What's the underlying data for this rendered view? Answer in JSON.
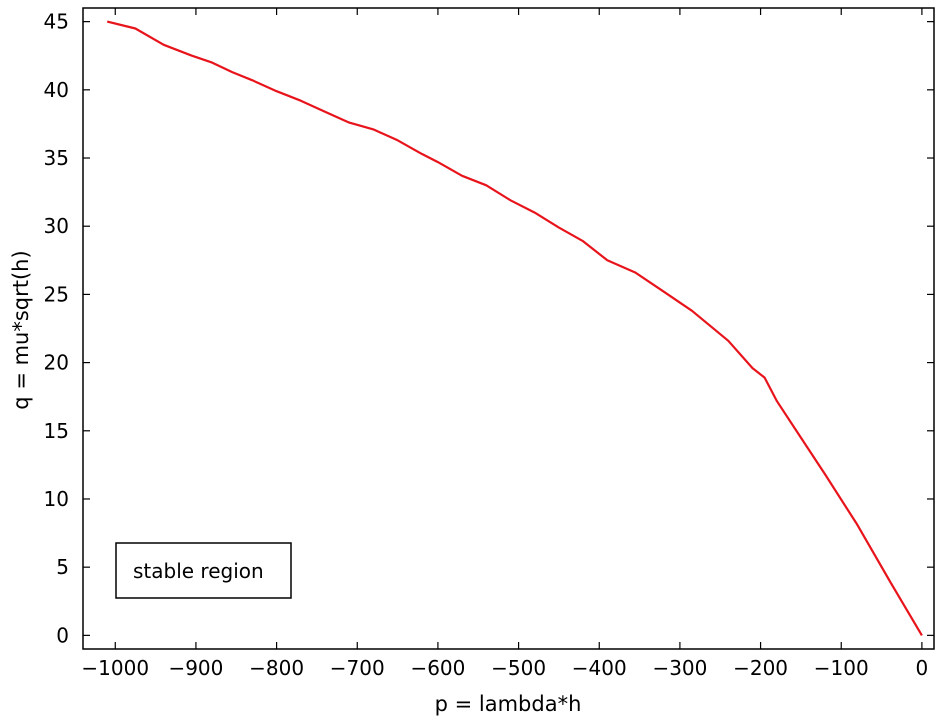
{
  "chart_data": {
    "type": "line",
    "title": "",
    "xlabel": "p = lambda*h",
    "ylabel": "q = mu*sqrt(h)",
    "xlim": [
      -1040,
      15
    ],
    "ylim": [
      -1,
      46
    ],
    "xticks": [
      -1000,
      -900,
      -800,
      -700,
      -600,
      -500,
      -400,
      -300,
      -200,
      -100,
      0
    ],
    "xtick_labels": [
      "−1000",
      "−900",
      "−800",
      "−700",
      "−600",
      "−500",
      "−400",
      "−300",
      "−200",
      "−100",
      "0"
    ],
    "yticks": [
      0,
      5,
      10,
      15,
      20,
      25,
      30,
      35,
      40,
      45
    ],
    "ytick_labels": [
      "0",
      "5",
      "10",
      "15",
      "20",
      "25",
      "30",
      "35",
      "40",
      "45"
    ],
    "grid": false,
    "annotation": "stable region",
    "series": [
      {
        "color": "#e8141c",
        "x": [
          -1010,
          -975,
          -940,
          -905,
          -880,
          -855,
          -830,
          -800,
          -770,
          -740,
          -710,
          -680,
          -650,
          -620,
          -600,
          -570,
          -540,
          -510,
          -480,
          -450,
          -420,
          -390,
          -355,
          -320,
          -285,
          -240,
          -210,
          -195,
          -180,
          -150,
          -120,
          -80,
          -40,
          0
        ],
        "y": [
          45.0,
          44.5,
          43.3,
          42.5,
          42.0,
          41.3,
          40.7,
          39.9,
          39.2,
          38.4,
          37.6,
          37.1,
          36.3,
          35.3,
          34.7,
          33.7,
          33.0,
          31.9,
          31.0,
          29.9,
          28.9,
          27.5,
          26.6,
          25.2,
          23.8,
          21.6,
          19.6,
          18.9,
          17.2,
          14.5,
          11.8,
          8.1,
          4.0,
          0.0
        ]
      }
    ]
  }
}
